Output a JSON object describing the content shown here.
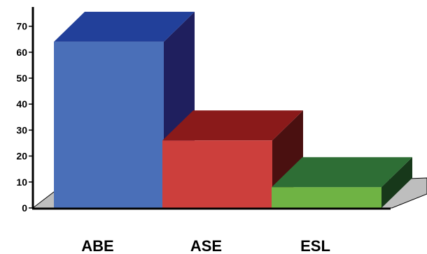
{
  "chart_data": {
    "type": "bar",
    "style": "3d",
    "title": "",
    "xlabel": "",
    "ylabel": "",
    "categories": [
      "ABE",
      "ASE",
      "ESL"
    ],
    "values": [
      64,
      26,
      8
    ],
    "ylim": [
      0,
      70
    ],
    "yticks": [
      0,
      10,
      20,
      30,
      40,
      50,
      60,
      70
    ],
    "ytick_labels": [
      "0",
      "10",
      "20",
      "30",
      "40",
      "50",
      "60",
      "70"
    ],
    "grid": false,
    "legend": "none",
    "colors": {
      "ABE": {
        "front": "#4A6FB8",
        "top": "#22409A",
        "side": "#1F1F5E"
      },
      "ASE": {
        "front": "#CC3F3C",
        "top": "#8A1A1A",
        "side": "#4A1010"
      },
      "ESL": {
        "front": "#6FB344",
        "top": "#2E6E35",
        "side": "#17381A"
      },
      "floor": "#BEBEBE",
      "axis": "#000000"
    }
  }
}
